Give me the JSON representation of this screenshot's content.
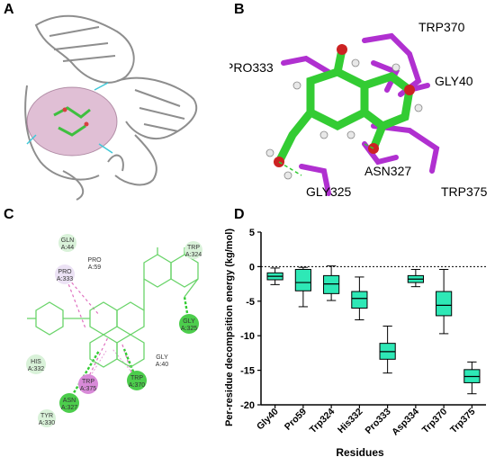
{
  "panels": {
    "a": {
      "label": "A"
    },
    "b": {
      "label": "B",
      "residues": [
        "TRP370",
        "PRO333",
        "GLY40",
        "ASN327",
        "GLY325",
        "TRP375"
      ]
    },
    "c": {
      "label": "C",
      "residues": [
        {
          "name": "GLN",
          "chain": "A:44"
        },
        {
          "name": "PRO",
          "chain": "A:59"
        },
        {
          "name": "TRP",
          "chain": "A:324"
        },
        {
          "name": "PRO",
          "chain": "A:333"
        },
        {
          "name": "HIS",
          "chain": "A:332"
        },
        {
          "name": "GLY",
          "chain": "A:40"
        },
        {
          "name": "GLY",
          "chain": "A:325"
        },
        {
          "name": "ASN",
          "chain": "A:327"
        },
        {
          "name": "TRP",
          "chain": "A:375"
        },
        {
          "name": "TRP",
          "chain": "A:370"
        },
        {
          "name": "TYR",
          "chain": "A:330"
        }
      ]
    },
    "d": {
      "label": "D"
    }
  },
  "chart_data": {
    "type": "box",
    "title": "",
    "xlabel": "Residues",
    "ylabel": "Per-residue decompsition energy (kg/mol)",
    "ylim": [
      -20,
      5
    ],
    "yticks": [
      5,
      0,
      -5,
      -10,
      -15,
      -20
    ],
    "reference_line": 0,
    "box_color": "#2ee8b6",
    "categories": [
      "Gly40",
      "Pro59",
      "Trp324",
      "His332",
      "Pro333",
      "Asp334",
      "Trp370",
      "Trp375"
    ],
    "boxes": [
      {
        "min": -2.6,
        "q1": -1.9,
        "median": -1.4,
        "q3": -0.9,
        "max": -0.2
      },
      {
        "min": -5.8,
        "q1": -3.5,
        "median": -2.3,
        "q3": -0.4,
        "max": -0.1
      },
      {
        "min": -4.9,
        "q1": -3.9,
        "median": -2.5,
        "q3": -1.3,
        "max": 0.1
      },
      {
        "min": -7.7,
        "q1": -6.0,
        "median": -4.6,
        "q3": -3.6,
        "max": -1.5
      },
      {
        "min": -15.4,
        "q1": -13.4,
        "median": -12.3,
        "q3": -11.1,
        "max": -8.6
      },
      {
        "min": -2.9,
        "q1": -2.3,
        "median": -1.8,
        "q3": -1.3,
        "max": -0.4
      },
      {
        "min": -9.7,
        "q1": -7.1,
        "median": -5.6,
        "q3": -3.6,
        "max": -0.4
      },
      {
        "min": -18.4,
        "q1": -16.8,
        "median": -15.9,
        "q3": -14.9,
        "max": -13.8
      }
    ]
  }
}
